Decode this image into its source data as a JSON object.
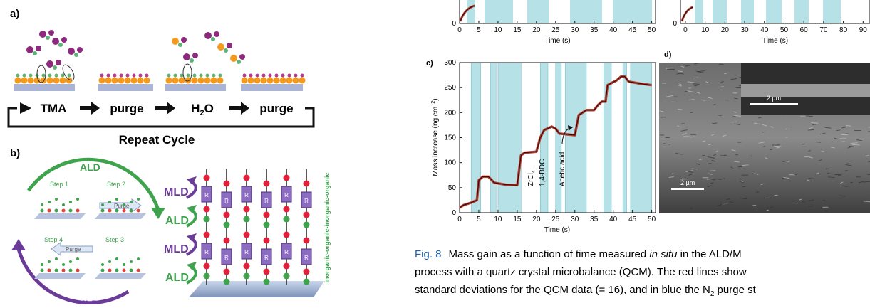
{
  "panel_a": {
    "label": "a)",
    "steps": [
      "TMA",
      "purge",
      [
        "H",
        "2",
        "O"
      ],
      "purge"
    ],
    "cycle": "Repeat Cycle"
  },
  "panel_b": {
    "label": "b)",
    "ald": "ALD",
    "mld": "MLD",
    "steps": [
      "Step 1",
      "Step 2",
      "Step 3",
      "Step 4"
    ],
    "purge": [
      "Purge",
      "Purge"
    ],
    "layers": [
      "MLD",
      "ALD",
      "MLD",
      "ALD"
    ],
    "side_label": "inorganic-organic-inorganic-organic",
    "unit": "R"
  },
  "chart_top_1": {
    "yticks": [
      0
    ],
    "xticks": [
      0,
      5,
      10,
      15,
      20,
      25,
      30,
      35,
      40,
      45,
      50
    ],
    "xlim": [
      0,
      51
    ],
    "xlabel": "Time (s)"
  },
  "chart_top_2": {
    "yticks": [
      0
    ],
    "xticks": [
      0,
      10,
      20,
      30,
      40,
      50,
      60,
      70,
      80,
      90
    ],
    "xlim": [
      -2.5,
      93.5
    ],
    "xlabel": "Time (s)"
  },
  "panel_c": {
    "label": "c)",
    "ylabel": [
      "Mass increase (ng cm",
      "−2",
      ")"
    ],
    "xlabel": "Time (s)",
    "xlim": [
      0,
      51
    ],
    "ylim": [
      0,
      300
    ],
    "xticks": [
      0,
      5,
      10,
      15,
      20,
      25,
      30,
      35,
      40,
      45,
      50
    ],
    "yticks": [
      0,
      50,
      100,
      150,
      200,
      250,
      300
    ],
    "purge_intervals": [
      [
        3,
        5.5
      ],
      [
        8,
        9.5
      ],
      [
        10,
        16
      ],
      [
        21,
        23
      ],
      [
        25,
        26.5
      ],
      [
        27.5,
        33
      ],
      [
        37.5,
        39.5
      ],
      [
        42.5,
        43.5
      ],
      [
        44.5,
        50
      ]
    ],
    "time": [
      0,
      1,
      3,
      4.5,
      5,
      6,
      7.5,
      9,
      12,
      15,
      16,
      17,
      20,
      21,
      22,
      24,
      25,
      26,
      30,
      31,
      33,
      35,
      36,
      37,
      38,
      38.5,
      41,
      42,
      43,
      44,
      47,
      50
    ],
    "mass": [
      10,
      15,
      20,
      25,
      65,
      72,
      72,
      60,
      56,
      55,
      115,
      120,
      122,
      150,
      165,
      172,
      168,
      158,
      155,
      195,
      205,
      205,
      215,
      222,
      222,
      255,
      265,
      272,
      272,
      262,
      258,
      255
    ],
    "annotations": [
      [
        "ZrCl",
        "4"
      ],
      "1,4-BDC",
      "Acetic acid"
    ]
  },
  "panel_d": {
    "label": "d)",
    "scale_main": "2 µm",
    "scale_inset": "2 µm"
  },
  "caption": {
    "label": "Fig. 8",
    "line1": [
      "Mass gain as a function of time measured ",
      "in situ",
      " in the ALD/M"
    ],
    "line2": "process with a quartz crystal microbalance (QCM). The red lines show",
    "line3": [
      "standard deviations for the QCM data (= 16), and in blue the N",
      "2",
      " purge st"
    ]
  }
}
